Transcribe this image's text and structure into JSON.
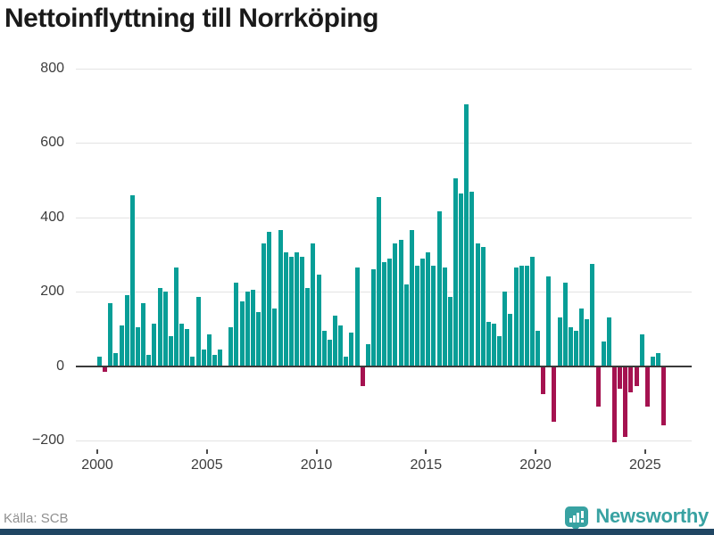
{
  "header": {
    "title": "Nettoinflyttning till Norrköping"
  },
  "footer": {
    "source": "Källa: SCB",
    "brand": "Newsworthy"
  },
  "colors": {
    "positive_bar": "#089e97",
    "negative_bar": "#a51250",
    "brand_teal": "#38a2a2",
    "bottom_bar_navy": "#204663",
    "grid": "#e3e3e3",
    "axis": "#3a3a3a",
    "text_dark": "#1a1a1a",
    "text_axis": "#3d3d3d",
    "text_source": "#8f8f8f"
  },
  "chart_data": {
    "type": "bar",
    "title": "Nettoinflyttning till Norrköping",
    "frequency": "quarterly",
    "start": "2000Q1",
    "end": "2025Q4",
    "xlabel": "",
    "ylabel": "",
    "xticks": [
      2000,
      2005,
      2010,
      2015,
      2020,
      2025
    ],
    "yticks": [
      800,
      600,
      400,
      200,
      0,
      -200
    ],
    "ylim": [
      -230,
      815
    ],
    "grid": "horizontal",
    "legend": "none",
    "values": [
      25,
      -15,
      170,
      35,
      110,
      190,
      460,
      105,
      170,
      30,
      115,
      210,
      200,
      80,
      265,
      115,
      100,
      25,
      185,
      45,
      85,
      30,
      45,
      0,
      105,
      225,
      175,
      200,
      205,
      145,
      330,
      360,
      155,
      365,
      305,
      295,
      305,
      295,
      210,
      330,
      245,
      95,
      70,
      135,
      110,
      25,
      90,
      265,
      -55,
      60,
      260,
      455,
      280,
      290,
      330,
      340,
      220,
      365,
      270,
      290,
      305,
      270,
      415,
      265,
      185,
      505,
      465,
      705,
      470,
      330,
      320,
      120,
      115,
      80,
      200,
      140,
      265,
      270,
      270,
      295,
      95,
      -75,
      240,
      -150,
      130,
      225,
      105,
      95,
      155,
      125,
      275,
      -110,
      65,
      130,
      -205,
      -60,
      -190,
      -70,
      -55,
      85,
      -110,
      25,
      35,
      -160
    ]
  }
}
